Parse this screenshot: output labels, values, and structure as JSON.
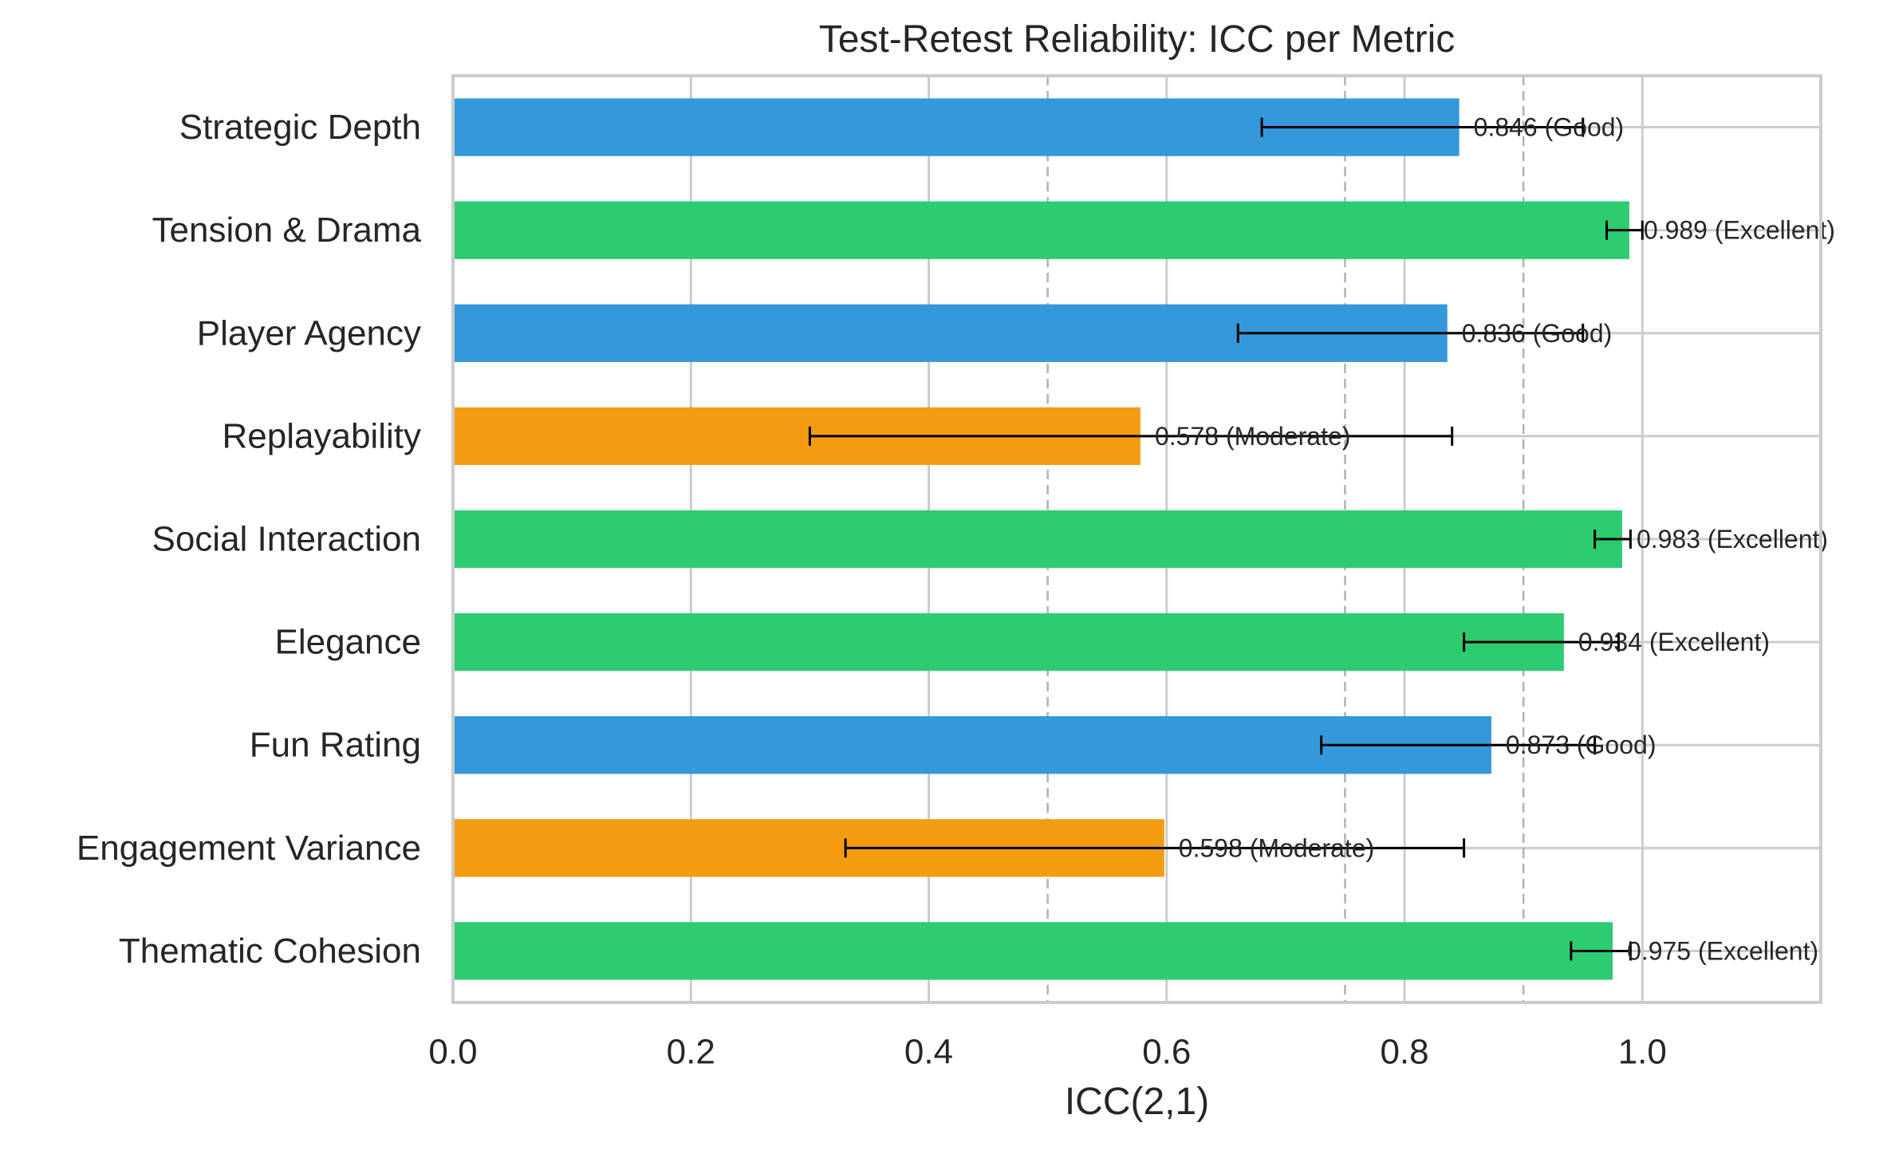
{
  "chart_data": {
    "type": "bar",
    "orientation": "horizontal",
    "title": "Test-Retest Reliability: ICC per Metric",
    "xlabel": "ICC(2,1)",
    "ylabel": "",
    "xlim": [
      0,
      1.15
    ],
    "xticks": [
      0.0,
      0.2,
      0.4,
      0.6,
      0.8,
      1.0
    ],
    "xtick_labels": [
      "0.0",
      "0.2",
      "0.4",
      "0.6",
      "0.8",
      "1.0"
    ],
    "grid": true,
    "reference_lines": [
      0.5,
      0.75,
      0.9
    ],
    "categories": [
      "Strategic Depth",
      "Tension & Drama",
      "Player Agency",
      "Replayability",
      "Social Interaction",
      "Elegance",
      "Fun Rating",
      "Engagement Variance",
      "Thematic Cohesion"
    ],
    "values": [
      0.846,
      0.989,
      0.836,
      0.578,
      0.983,
      0.934,
      0.873,
      0.598,
      0.975
    ],
    "ci_low": [
      0.68,
      0.97,
      0.66,
      0.3,
      0.96,
      0.85,
      0.73,
      0.33,
      0.94
    ],
    "ci_high": [
      0.95,
      1.0,
      0.95,
      0.84,
      0.99,
      0.98,
      0.96,
      0.85,
      0.99
    ],
    "ratings": [
      "Good",
      "Excellent",
      "Good",
      "Moderate",
      "Excellent",
      "Excellent",
      "Good",
      "Moderate",
      "Excellent"
    ],
    "value_labels": [
      "0.846 (Good)",
      "0.989 (Excellent)",
      "0.836 (Good)",
      "0.578 (Moderate)",
      "0.983 (Excellent)",
      "0.934 (Excellent)",
      "0.873 (Good)",
      "0.598 (Moderate)",
      "0.975 (Excellent)"
    ],
    "rating_colors": {
      "Excellent": "#2ecc71",
      "Good": "#3498db",
      "Moderate": "#f39c12"
    }
  }
}
